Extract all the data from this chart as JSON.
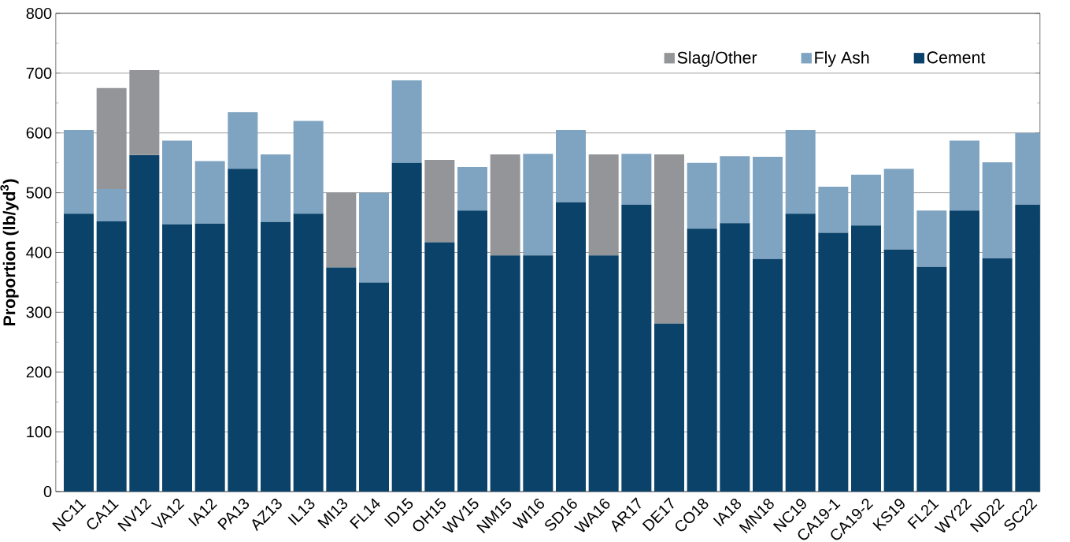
{
  "chart_data": {
    "type": "bar",
    "stacked": true,
    "ylabel": "Proportion (lb/yd$^{3}$)",
    "categories": [
      "NC11",
      "CA11",
      "NV12",
      "VA12",
      "IA12",
      "PA13",
      "AZ13",
      "IL13",
      "MI13",
      "FL14",
      "ID15",
      "OH15",
      "WV15",
      "NM15",
      "WI16",
      "SD16",
      "WA16",
      "AR17",
      "DE17",
      "CO18",
      "IA18",
      "MN18",
      "NC19",
      "CA19-1",
      "CA19-2",
      "KS19",
      "FL21",
      "WY22",
      "ND22",
      "SC22"
    ],
    "series": [
      {
        "name": "Cement",
        "color": "#0a4269",
        "values": [
          465,
          452,
          563,
          447,
          448,
          540,
          451,
          465,
          375,
          350,
          550,
          417,
          470,
          395,
          395,
          484,
          395,
          480,
          281,
          440,
          449,
          389,
          465,
          433,
          445,
          405,
          376,
          470,
          390,
          480
        ]
      },
      {
        "name": "Fly Ash",
        "color": "#7fa4c2",
        "values": [
          140,
          54,
          0,
          140,
          105,
          95,
          113,
          155,
          0,
          150,
          138,
          0,
          73,
          0,
          170,
          121,
          0,
          85,
          0,
          110,
          112,
          171,
          140,
          77,
          85,
          135,
          94,
          117,
          161,
          120
        ]
      },
      {
        "name": "Slag/Other",
        "color": "#939598",
        "values": [
          0,
          169,
          142,
          0,
          0,
          0,
          0,
          0,
          125,
          0,
          0,
          138,
          0,
          169,
          0,
          0,
          169,
          0,
          283,
          0,
          0,
          0,
          0,
          0,
          0,
          0,
          0,
          0,
          0,
          0
        ]
      }
    ],
    "ylim": [
      0,
      800
    ],
    "yticks": [
      0,
      {
        "value": 50,
        "label": null
      },
      100,
      {
        "value": 150,
        "label": null
      },
      200,
      {
        "value": 250,
        "label": null
      },
      300,
      {
        "value": 350,
        "label": null
      },
      400,
      {
        "value": 450,
        "label": null
      },
      500,
      {
        "value": 550,
        "label": null
      },
      600,
      {
        "value": 650,
        "label": null
      },
      700,
      {
        "value": 750,
        "label": null
      },
      800
    ],
    "grid": "y",
    "legend": "top right"
  }
}
